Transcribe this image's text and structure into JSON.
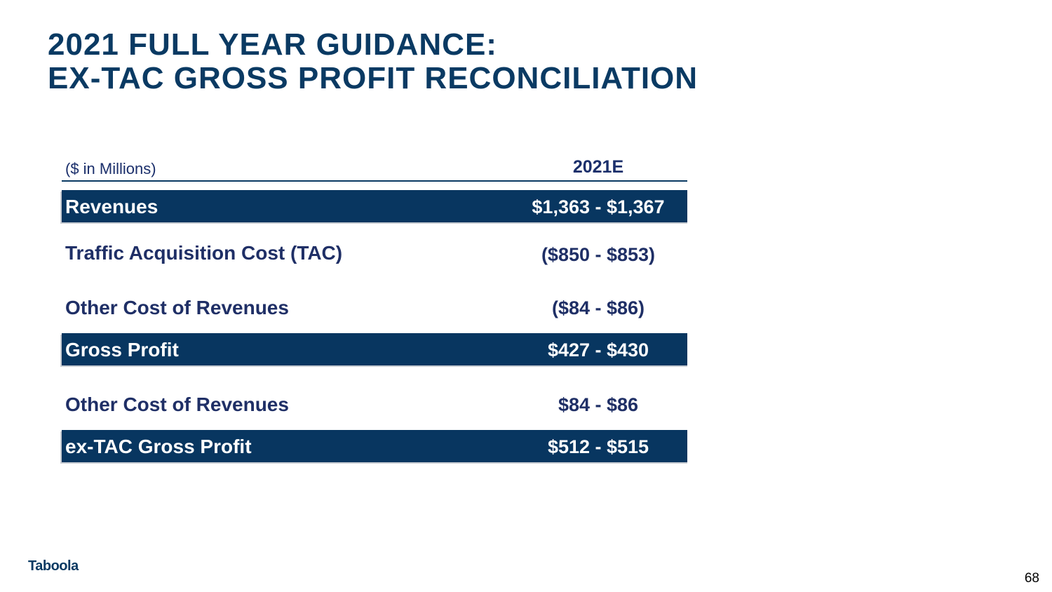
{
  "slide": {
    "title_line1": "2021 FULL YEAR GUIDANCE:",
    "title_line2": "EX-TAC GROSS PROFIT RECONCILIATION",
    "page_number": "68",
    "logo_text": "Taboola"
  },
  "table": {
    "units_label": "($ in Millions)",
    "column_header": "2021E",
    "rows": [
      {
        "label": "Revenues",
        "value": "$1,363 - $1,367"
      },
      {
        "label": "Traffic Acquisition Cost (TAC)",
        "value": "($850 - $853)"
      },
      {
        "label": "Other Cost of Revenues",
        "value": "($84 - $86)"
      },
      {
        "label": "Gross Profit",
        "value": "$427 - $430"
      },
      {
        "label": "Other Cost of Revenues",
        "value": "$84 - $86"
      },
      {
        "label": "ex-TAC Gross Profit",
        "value": "$512 - $515"
      }
    ]
  },
  "colors": {
    "title": "#0a3a63",
    "highlight_row": "#083660",
    "body_text": "#1f2f66"
  }
}
